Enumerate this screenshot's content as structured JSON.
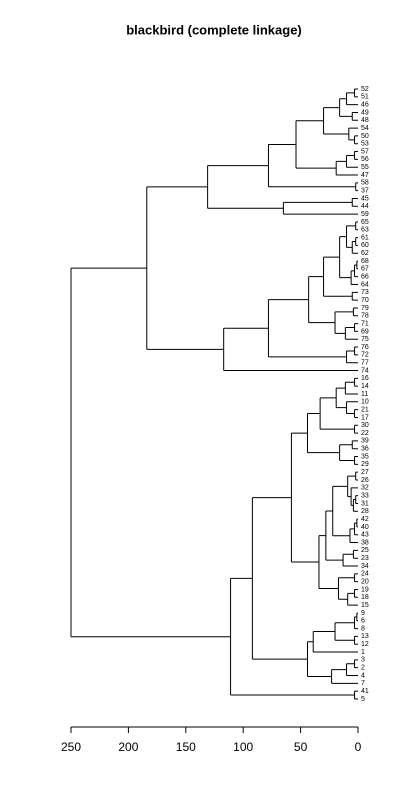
{
  "chart_data": {
    "type": "dendrogram",
    "title": "blackbird (complete linkage)",
    "xlim": [
      0,
      250
    ],
    "xticks": [
      250,
      200,
      150,
      100,
      50,
      0
    ],
    "tree": {
      "height": 250,
      "children": [
        {
          "height": 184,
          "children": [
            {
              "height": 131,
              "children": [
                {
                  "height": 78,
                  "children": [
                    {
                      "height": 54,
                      "children": [
                        {
                          "height": 30,
                          "children": [
                            {
                              "height": 16,
                              "children": [
                                {
                                  "height": 10,
                                  "children": [
                                    {
                                      "height": 3,
                                      "children": [
                                        "52",
                                        "51"
                                      ]
                                    },
                                    "46"
                                  ]
                                },
                                {
                                  "height": 5,
                                  "children": [
                                    "49",
                                    "48"
                                  ]
                                }
                              ]
                            },
                            {
                              "height": 8,
                              "children": [
                                "54",
                                {
                                  "height": 3,
                                  "children": [
                                    "50",
                                    "53"
                                  ]
                                }
                              ]
                            }
                          ]
                        },
                        {
                          "height": 19,
                          "children": [
                            {
                              "height": 10,
                              "children": [
                                {
                                  "height": 3,
                                  "children": [
                                    "57",
                                    "56"
                                  ]
                                },
                                "55"
                              ]
                            },
                            "47"
                          ]
                        }
                      ]
                    },
                    {
                      "height": 2,
                      "children": [
                        "58",
                        "37"
                      ]
                    }
                  ]
                },
                {
                  "height": 65,
                  "children": [
                    {
                      "height": 5,
                      "children": [
                        "45",
                        "44"
                      ]
                    },
                    "59"
                  ]
                }
              ]
            },
            {
              "height": 117,
              "children": [
                {
                  "height": 78,
                  "children": [
                    {
                      "height": 43,
                      "children": [
                        {
                          "height": 30,
                          "children": [
                            {
                              "height": 16,
                              "children": [
                                {
                                  "height": 10,
                                  "children": [
                                    {
                                      "height": 2,
                                      "children": [
                                        "65",
                                        "63"
                                      ]
                                    },
                                    {
                                      "height": 5,
                                      "children": [
                                        {
                                          "height": 2,
                                          "children": [
                                            "61",
                                            "60"
                                          ]
                                        },
                                        "62"
                                      ]
                                    }
                                  ]
                                },
                                {
                                  "height": 6,
                                  "children": [
                                    {
                                      "height": 3,
                                      "children": [
                                        {
                                          "height": 1,
                                          "children": [
                                            "68",
                                            "67"
                                          ]
                                        },
                                        "66"
                                      ]
                                    },
                                    "64"
                                  ]
                                }
                              ]
                            },
                            {
                              "height": 5,
                              "children": [
                                "73",
                                "70"
                              ]
                            }
                          ]
                        },
                        {
                          "height": 20,
                          "children": [
                            {
                              "height": 4,
                              "children": [
                                "79",
                                "78"
                              ]
                            },
                            {
                              "height": 11,
                              "children": [
                                {
                                  "height": 3,
                                  "children": [
                                    "71",
                                    "69"
                                  ]
                                },
                                "75"
                              ]
                            }
                          ]
                        }
                      ]
                    },
                    {
                      "height": 10,
                      "children": [
                        {
                          "height": 3,
                          "children": [
                            "76",
                            "72"
                          ]
                        },
                        "77"
                      ]
                    }
                  ]
                },
                "74"
              ]
            }
          ]
        },
        {
          "height": 111,
          "children": [
            {
              "height": 92,
              "children": [
                {
                  "height": 58,
                  "children": [
                    {
                      "height": 44,
                      "children": [
                        {
                          "height": 33,
                          "children": [
                            {
                              "height": 19,
                              "children": [
                                {
                                  "height": 11,
                                  "children": [
                                    {
                                      "height": 3,
                                      "children": [
                                        "16",
                                        "14"
                                      ]
                                    },
                                    "11"
                                  ]
                                },
                                {
                                  "height": 10,
                                  "children": [
                                    "10",
                                    {
                                      "height": 3,
                                      "children": [
                                        "21",
                                        "17"
                                      ]
                                    }
                                  ]
                                }
                              ]
                            },
                            {
                              "height": 3,
                              "children": [
                                "30",
                                "22"
                              ]
                            }
                          ]
                        },
                        {
                          "height": 16,
                          "children": [
                            {
                              "height": 5,
                              "children": [
                                "39",
                                "36"
                              ]
                            },
                            {
                              "height": 3,
                              "children": [
                                "35",
                                "29"
                              ]
                            }
                          ]
                        }
                      ]
                    },
                    {
                      "height": 34,
                      "children": [
                        {
                          "height": 28,
                          "children": [
                            {
                              "height": 22,
                              "children": [
                                {
                                  "height": 9,
                                  "children": [
                                    {
                                      "height": 2,
                                      "children": [
                                        "27",
                                        "26"
                                      ]
                                    },
                                    {
                                      "height": 6,
                                      "children": [
                                        "32",
                                        {
                                          "height": 4,
                                          "children": [
                                            {
                                              "height": 2,
                                              "children": [
                                                "33",
                                                "31"
                                              ]
                                            },
                                            "28"
                                          ]
                                        }
                                      ]
                                    }
                                  ]
                                },
                                {
                                  "height": 7,
                                  "children": [
                                    {
                                      "height": 3,
                                      "children": [
                                        {
                                          "height": 1,
                                          "children": [
                                            "42",
                                            "40"
                                          ]
                                        },
                                        "43"
                                      ]
                                    },
                                    "38"
                                  ]
                                }
                              ]
                            },
                            {
                              "height": 13,
                              "children": [
                                {
                                  "height": 4,
                                  "children": [
                                    "25",
                                    "23"
                                  ]
                                },
                                "34"
                              ]
                            }
                          ]
                        },
                        {
                          "height": 17,
                          "children": [
                            {
                              "height": 3,
                              "children": [
                                "24",
                                "20"
                              ]
                            },
                            {
                              "height": 9,
                              "children": [
                                {
                                  "height": 3,
                                  "children": [
                                    "19",
                                    "18"
                                  ]
                                },
                                "15"
                              ]
                            }
                          ]
                        }
                      ]
                    }
                  ]
                },
                {
                  "height": 44,
                  "children": [
                    {
                      "height": 39,
                      "children": [
                        {
                          "height": 20,
                          "children": [
                            {
                              "height": 3,
                              "children": [
                                {
                                  "height": 1,
                                  "children": [
                                    "9",
                                    "6"
                                  ]
                                },
                                "8"
                              ]
                            },
                            {
                              "height": 3,
                              "children": [
                                "13",
                                "12"
                              ]
                            }
                          ]
                        },
                        "1"
                      ]
                    },
                    {
                      "height": 23,
                      "children": [
                        {
                          "height": 10,
                          "children": [
                            {
                              "height": 3,
                              "children": [
                                "3",
                                "2"
                              ]
                            },
                            "4"
                          ]
                        },
                        "7"
                      ]
                    }
                  ]
                }
              ]
            },
            {
              "height": 3,
              "children": [
                "41",
                "5"
              ]
            }
          ]
        }
      ]
    }
  }
}
